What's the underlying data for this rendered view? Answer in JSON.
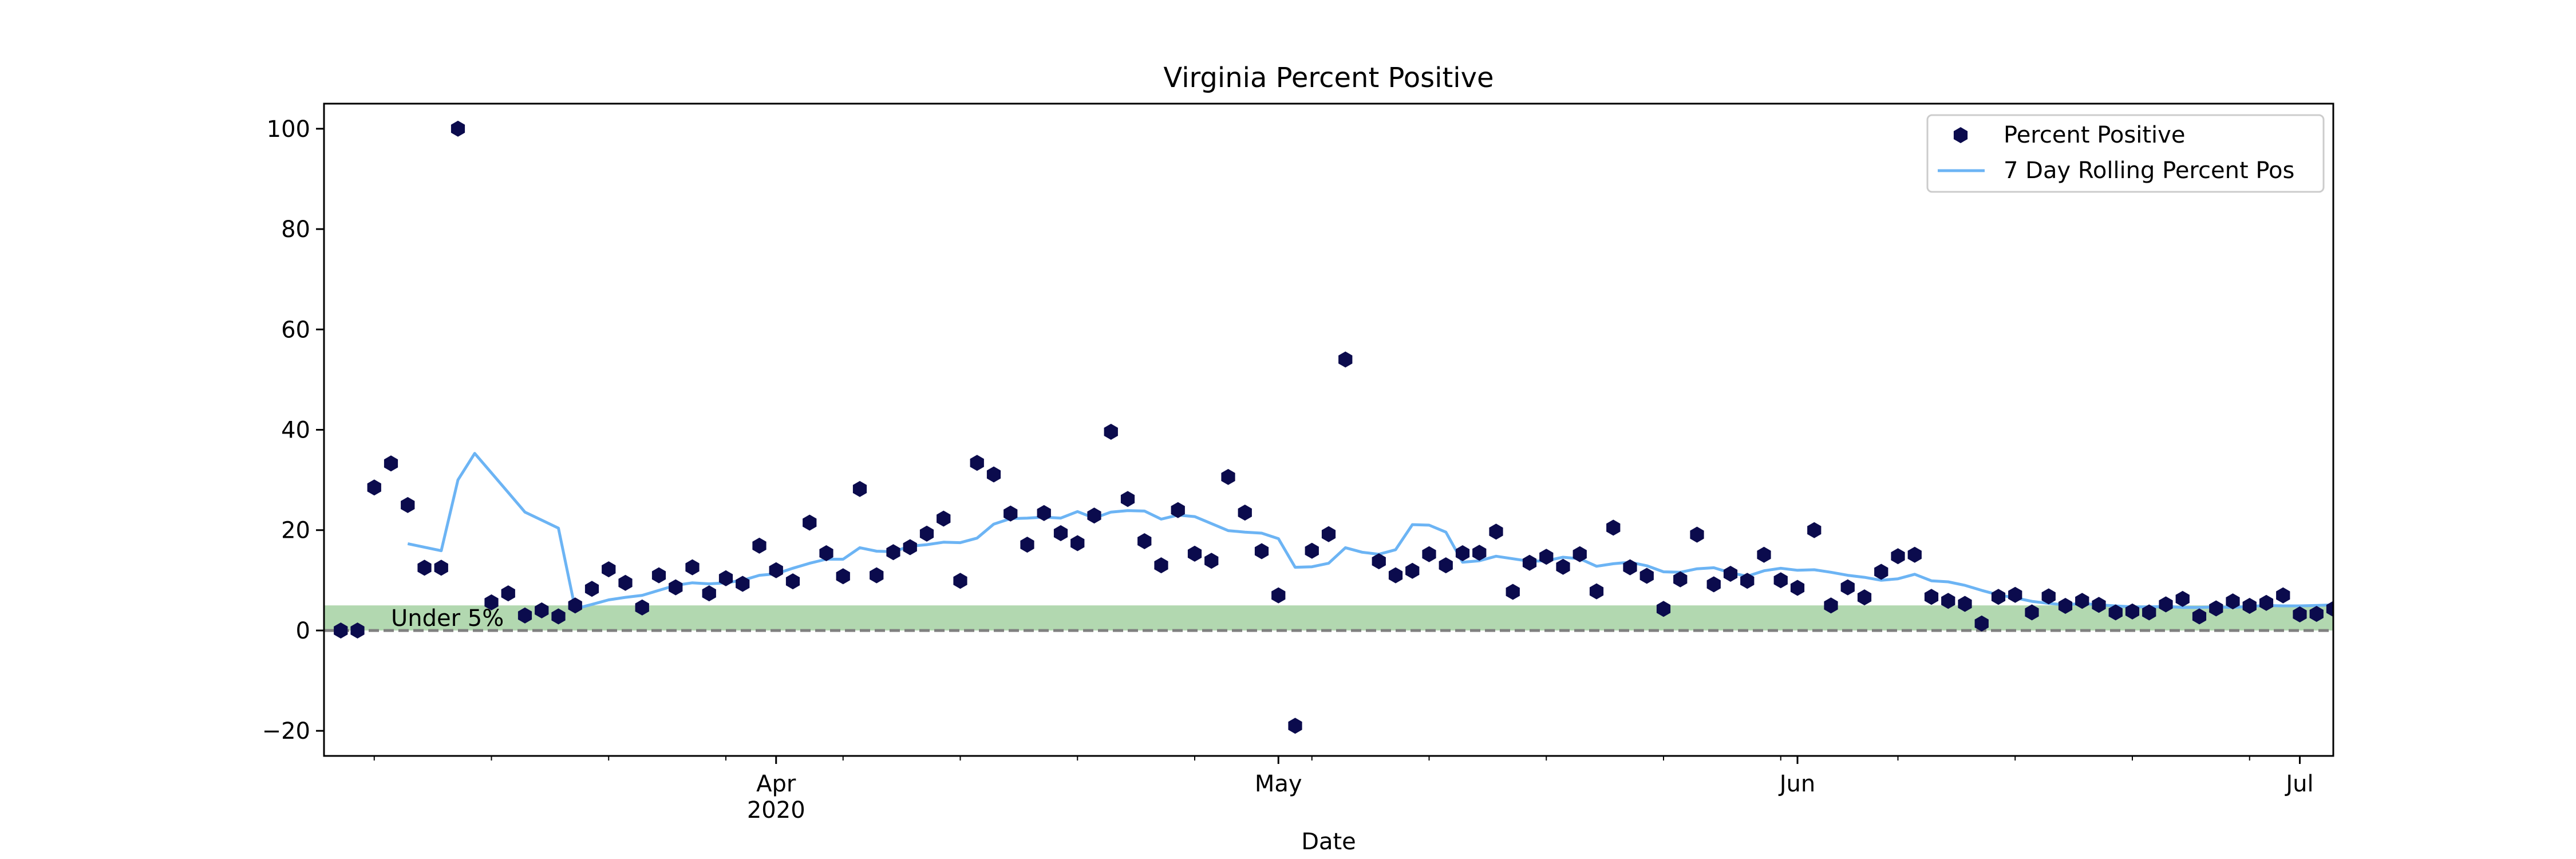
{
  "chart_data": {
    "type": "scatter",
    "title": "Virginia Percent Positive",
    "xlabel": "Date",
    "ylabel": "",
    "ylim": [
      -25,
      105
    ],
    "xlim": [
      "2020-03-05",
      "2020-07-03"
    ],
    "grid": false,
    "legend_position": "top-right",
    "x_ticks": [
      {
        "date": "2020-04-01",
        "label": "Apr",
        "sublabel": "2020"
      },
      {
        "date": "2020-05-01",
        "label": "May",
        "sublabel": ""
      },
      {
        "date": "2020-06-01",
        "label": "Jun",
        "sublabel": ""
      },
      {
        "date": "2020-07-01",
        "label": "Jul",
        "sublabel": ""
      }
    ],
    "y_ticks": [
      {
        "value": -20,
        "label": "−20"
      },
      {
        "value": 0,
        "label": "0"
      },
      {
        "value": 20,
        "label": "20"
      },
      {
        "value": 40,
        "label": "40"
      },
      {
        "value": 60,
        "label": "60"
      },
      {
        "value": 80,
        "label": "80"
      },
      {
        "value": 100,
        "label": "100"
      }
    ],
    "band": {
      "from": 0,
      "to": 5,
      "label": "Under 5%",
      "color": "#b2d8b0"
    },
    "zero_line": {
      "value": 0,
      "color": "#808080",
      "style": "dashed"
    },
    "series": [
      {
        "name": "Percent Positive",
        "type": "scatter",
        "marker": "hexagon",
        "color": "#0b0b4d",
        "points": [
          [
            "2020-03-06",
            0
          ],
          [
            "2020-03-07",
            0
          ],
          [
            "2020-03-08",
            28.5
          ],
          [
            "2020-03-09",
            33.3
          ],
          [
            "2020-03-10",
            25
          ],
          [
            "2020-03-11",
            12.5
          ],
          [
            "2020-03-12",
            12.5
          ],
          [
            "2020-03-13",
            100
          ],
          [
            "2020-03-15",
            5.6
          ],
          [
            "2020-03-16",
            7.4
          ],
          [
            "2020-03-17",
            3
          ],
          [
            "2020-03-18",
            4
          ],
          [
            "2020-03-19",
            2.8
          ],
          [
            "2020-03-20",
            5
          ],
          [
            "2020-03-21",
            8.3
          ],
          [
            "2020-03-22",
            12.2
          ],
          [
            "2020-03-23",
            9.5
          ],
          [
            "2020-03-24",
            4.6
          ],
          [
            "2020-03-25",
            11
          ],
          [
            "2020-03-26",
            8.6
          ],
          [
            "2020-03-27",
            12.6
          ],
          [
            "2020-03-28",
            7.4
          ],
          [
            "2020-03-29",
            10.4
          ],
          [
            "2020-03-30",
            9.3
          ],
          [
            "2020-03-31",
            16.9
          ],
          [
            "2020-04-01",
            12
          ],
          [
            "2020-04-02",
            9.8
          ],
          [
            "2020-04-03",
            21.5
          ],
          [
            "2020-04-04",
            15.4
          ],
          [
            "2020-04-05",
            10.8
          ],
          [
            "2020-04-06",
            28.2
          ],
          [
            "2020-04-07",
            11
          ],
          [
            "2020-04-08",
            15.6
          ],
          [
            "2020-04-09",
            16.6
          ],
          [
            "2020-04-10",
            19.3
          ],
          [
            "2020-04-11",
            22.3
          ],
          [
            "2020-04-12",
            9.9
          ],
          [
            "2020-04-13",
            33.4
          ],
          [
            "2020-04-14",
            31.1
          ],
          [
            "2020-04-15",
            23.3
          ],
          [
            "2020-04-16",
            17.1
          ],
          [
            "2020-04-17",
            23.4
          ],
          [
            "2020-04-18",
            19.4
          ],
          [
            "2020-04-19",
            17.4
          ],
          [
            "2020-04-20",
            22.9
          ],
          [
            "2020-04-21",
            39.6
          ],
          [
            "2020-04-22",
            26.2
          ],
          [
            "2020-04-23",
            17.8
          ],
          [
            "2020-04-24",
            13
          ],
          [
            "2020-04-25",
            24
          ],
          [
            "2020-04-26",
            15.3
          ],
          [
            "2020-04-27",
            13.9
          ],
          [
            "2020-04-28",
            30.6
          ],
          [
            "2020-04-29",
            23.5
          ],
          [
            "2020-04-30",
            15.8
          ],
          [
            "2020-05-01",
            7
          ],
          [
            "2020-05-02",
            -19
          ],
          [
            "2020-05-03",
            15.9
          ],
          [
            "2020-05-04",
            19.2
          ],
          [
            "2020-05-05",
            54
          ],
          [
            "2020-05-07",
            13.8
          ],
          [
            "2020-05-08",
            11
          ],
          [
            "2020-05-09",
            11.9
          ],
          [
            "2020-05-10",
            15.2
          ],
          [
            "2020-05-11",
            13
          ],
          [
            "2020-05-12",
            15.4
          ],
          [
            "2020-05-13",
            15.5
          ],
          [
            "2020-05-14",
            19.7
          ],
          [
            "2020-05-15",
            7.7
          ],
          [
            "2020-05-16",
            13.5
          ],
          [
            "2020-05-17",
            14.7
          ],
          [
            "2020-05-18",
            12.7
          ],
          [
            "2020-05-19",
            15.2
          ],
          [
            "2020-05-20",
            7.8
          ],
          [
            "2020-05-21",
            20.5
          ],
          [
            "2020-05-22",
            12.6
          ],
          [
            "2020-05-23",
            10.9
          ],
          [
            "2020-05-24",
            4.3
          ],
          [
            "2020-05-25",
            10.2
          ],
          [
            "2020-05-26",
            19.1
          ],
          [
            "2020-05-27",
            9.2
          ],
          [
            "2020-05-28",
            11.3
          ],
          [
            "2020-05-29",
            9.9
          ],
          [
            "2020-05-30",
            15.1
          ],
          [
            "2020-05-31",
            10
          ],
          [
            "2020-06-01",
            8.5
          ],
          [
            "2020-06-02",
            20
          ],
          [
            "2020-06-03",
            5
          ],
          [
            "2020-06-04",
            8.6
          ],
          [
            "2020-06-05",
            6.6
          ],
          [
            "2020-06-06",
            11.7
          ],
          [
            "2020-06-07",
            14.8
          ],
          [
            "2020-06-08",
            15.1
          ],
          [
            "2020-06-09",
            6.7
          ],
          [
            "2020-06-10",
            5.9
          ],
          [
            "2020-06-11",
            5.3
          ],
          [
            "2020-06-12",
            1.4
          ],
          [
            "2020-06-13",
            6.7
          ],
          [
            "2020-06-14",
            7.1
          ],
          [
            "2020-06-15",
            3.6
          ],
          [
            "2020-06-16",
            6.8
          ],
          [
            "2020-06-17",
            4.9
          ],
          [
            "2020-06-18",
            5.9
          ],
          [
            "2020-06-19",
            5.1
          ],
          [
            "2020-06-20",
            3.6
          ],
          [
            "2020-06-21",
            3.8
          ],
          [
            "2020-06-22",
            3.6
          ],
          [
            "2020-06-23",
            5.2
          ],
          [
            "2020-06-24",
            6.3
          ],
          [
            "2020-06-25",
            2.8
          ],
          [
            "2020-06-26",
            4.4
          ],
          [
            "2020-06-27",
            5.8
          ],
          [
            "2020-06-28",
            4.9
          ],
          [
            "2020-06-29",
            5.5
          ],
          [
            "2020-06-30",
            7
          ],
          [
            "2020-07-01",
            3.2
          ],
          [
            "2020-07-02",
            3.3
          ],
          [
            "2020-07-03",
            4.3
          ]
        ]
      },
      {
        "name": "7 Day Rolling Percent Pos",
        "type": "line",
        "color": "#6cb4f4",
        "points": [
          [
            "2020-03-10",
            17.3
          ],
          [
            "2020-03-12",
            15.9
          ],
          [
            "2020-03-13",
            30
          ],
          [
            "2020-03-14",
            35.3
          ],
          [
            "2020-03-15",
            31.4
          ],
          [
            "2020-03-16",
            27.5
          ],
          [
            "2020-03-17",
            23.6
          ],
          [
            "2020-03-18",
            22
          ],
          [
            "2020-03-19",
            20.4
          ],
          [
            "2020-03-20",
            4.3
          ],
          [
            "2020-03-21",
            5.2
          ],
          [
            "2020-03-22",
            6.1
          ],
          [
            "2020-03-23",
            6.6
          ],
          [
            "2020-03-24",
            7
          ],
          [
            "2020-03-25",
            8
          ],
          [
            "2020-03-26",
            9
          ],
          [
            "2020-03-27",
            9.5
          ],
          [
            "2020-03-28",
            9.3
          ],
          [
            "2020-03-29",
            9.5
          ],
          [
            "2020-03-30",
            10
          ],
          [
            "2020-03-31",
            11
          ],
          [
            "2020-04-01",
            11.3
          ],
          [
            "2020-04-02",
            12.4
          ],
          [
            "2020-04-03",
            13.4
          ],
          [
            "2020-04-04",
            14.2
          ],
          [
            "2020-04-05",
            14.2
          ],
          [
            "2020-04-06",
            16.5
          ],
          [
            "2020-04-07",
            15.8
          ],
          [
            "2020-04-08",
            15.7
          ],
          [
            "2020-04-09",
            16.8
          ],
          [
            "2020-04-10",
            17.1
          ],
          [
            "2020-04-11",
            17.6
          ],
          [
            "2020-04-12",
            17.5
          ],
          [
            "2020-04-13",
            18.4
          ],
          [
            "2020-04-14",
            21.2
          ],
          [
            "2020-04-15",
            22.3
          ],
          [
            "2020-04-16",
            22.4
          ],
          [
            "2020-04-17",
            22.6
          ],
          [
            "2020-04-18",
            22.4
          ],
          [
            "2020-04-19",
            23.7
          ],
          [
            "2020-04-20",
            22.4
          ],
          [
            "2020-04-21",
            23.6
          ],
          [
            "2020-04-22",
            23.9
          ],
          [
            "2020-04-23",
            23.8
          ],
          [
            "2020-04-24",
            22.2
          ],
          [
            "2020-04-25",
            23
          ],
          [
            "2020-04-26",
            22.7
          ],
          [
            "2020-04-27",
            21.3
          ],
          [
            "2020-04-28",
            19.9
          ],
          [
            "2020-04-29",
            19.6
          ],
          [
            "2020-04-30",
            19.4
          ],
          [
            "2020-05-01",
            18.3
          ],
          [
            "2020-05-02",
            12.6
          ],
          [
            "2020-05-03",
            12.7
          ],
          [
            "2020-05-04",
            13.4
          ],
          [
            "2020-05-05",
            16.5
          ],
          [
            "2020-05-06",
            15.6
          ],
          [
            "2020-05-07",
            15.2
          ],
          [
            "2020-05-08",
            16.1
          ],
          [
            "2020-05-09",
            21.1
          ],
          [
            "2020-05-10",
            21
          ],
          [
            "2020-05-11",
            19.6
          ],
          [
            "2020-05-12",
            13.6
          ],
          [
            "2020-05-13",
            13.9
          ],
          [
            "2020-05-14",
            14.8
          ],
          [
            "2020-05-15",
            14.3
          ],
          [
            "2020-05-16",
            13.8
          ],
          [
            "2020-05-17",
            13.9
          ],
          [
            "2020-05-18",
            14.6
          ],
          [
            "2020-05-19",
            14.3
          ],
          [
            "2020-05-20",
            12.8
          ],
          [
            "2020-05-21",
            13.3
          ],
          [
            "2020-05-22",
            13.6
          ],
          [
            "2020-05-23",
            12.9
          ],
          [
            "2020-05-24",
            11.7
          ],
          [
            "2020-05-25",
            11.6
          ],
          [
            "2020-05-26",
            12.3
          ],
          [
            "2020-05-27",
            12.5
          ],
          [
            "2020-05-28",
            11.5
          ],
          [
            "2020-05-29",
            10.8
          ],
          [
            "2020-05-30",
            11.9
          ],
          [
            "2020-05-31",
            12.4
          ],
          [
            "2020-06-01",
            12
          ],
          [
            "2020-06-02",
            12.1
          ],
          [
            "2020-06-03",
            11.6
          ],
          [
            "2020-06-04",
            11
          ],
          [
            "2020-06-05",
            10.6
          ],
          [
            "2020-06-06",
            10
          ],
          [
            "2020-06-07",
            10.3
          ],
          [
            "2020-06-08",
            11.2
          ],
          [
            "2020-06-09",
            9.9
          ],
          [
            "2020-06-10",
            9.7
          ],
          [
            "2020-06-11",
            9
          ],
          [
            "2020-06-12",
            8
          ],
          [
            "2020-06-13",
            7.1
          ],
          [
            "2020-06-14",
            6.5
          ],
          [
            "2020-06-15",
            5.8
          ],
          [
            "2020-06-16",
            5.4
          ],
          [
            "2020-06-17",
            5.1
          ],
          [
            "2020-06-18",
            5.4
          ],
          [
            "2020-06-19",
            5.1
          ],
          [
            "2020-06-20",
            4.9
          ],
          [
            "2020-06-21",
            4.7
          ],
          [
            "2020-06-22",
            4.7
          ],
          [
            "2020-06-23",
            4.8
          ],
          [
            "2020-06-24",
            4.6
          ],
          [
            "2020-06-25",
            4.6
          ],
          [
            "2020-06-26",
            4.7
          ],
          [
            "2020-06-27",
            4.6
          ],
          [
            "2020-06-28",
            4.8
          ],
          [
            "2020-06-29",
            5
          ],
          [
            "2020-06-30",
            4.9
          ],
          [
            "2020-07-01",
            4.9
          ],
          [
            "2020-07-02",
            5
          ],
          [
            "2020-07-03",
            5.1
          ]
        ]
      }
    ]
  }
}
